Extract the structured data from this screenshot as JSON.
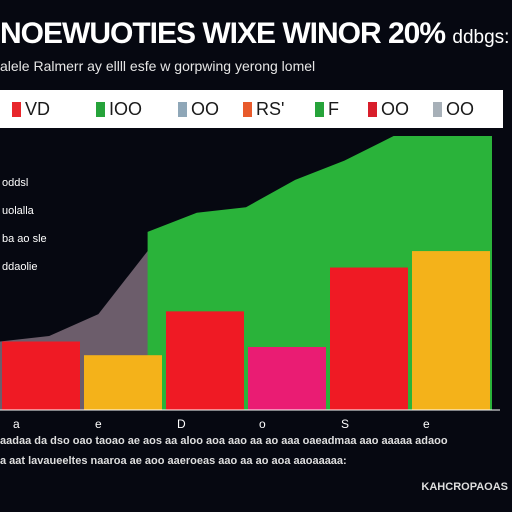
{
  "chart_data": {
    "type": "bar",
    "title": "NOEWUOTIES WIXE WINOR 20%",
    "title_suffix": "ddbgs:",
    "subtitle": "alele Ralmerr ay ellll esfe w gorpwing yerong lomel",
    "legend": [
      {
        "label": "VD",
        "color": "#e8262b"
      },
      {
        "label": "IOO",
        "color": "#26a33a"
      },
      {
        "label": "OO",
        "color": "#8fa7b8"
      },
      {
        "label": "RS'",
        "color": "#e85a2b"
      },
      {
        "label": "F",
        "color": "#26a33a"
      },
      {
        "label": "OO",
        "color": "#d81e2b"
      },
      {
        "label": "OO",
        "color": "#a7b0b8"
      }
    ],
    "y_tick_labels": [
      "oddsl",
      "uolalla",
      "ba ao sle",
      "ddaolie"
    ],
    "x_tick_labels": [
      "a",
      "e",
      "D",
      "o",
      "S",
      "e"
    ],
    "ylim": [
      0,
      100
    ],
    "bars": [
      {
        "value": 25,
        "color": "#ef1a24"
      },
      {
        "value": 20,
        "color": "#f4b21a"
      },
      {
        "value": 36,
        "color": "#ef1a24"
      },
      {
        "value": 23,
        "color": "#ea1c73"
      },
      {
        "value": 52,
        "color": "#ef1a24"
      },
      {
        "value": 58,
        "color": "#f4b21a"
      }
    ],
    "area_back": {
      "color": "#6c5d6b",
      "values": [
        25,
        27,
        35,
        58,
        57,
        53,
        60,
        60,
        62,
        62,
        64
      ]
    },
    "area_front": {
      "color": "#2ab33a",
      "values": [
        null,
        null,
        null,
        65,
        72,
        74,
        84,
        91,
        100,
        100,
        100
      ]
    },
    "grid": false,
    "legend_position": "top"
  },
  "footer_line_1": "aadaa da dso oao taoao ae aos aa aloo aoa aao aa ao aaa oaeadmaa aao aaaaa adaoo",
  "footer_line_2": "a aat lavaueeltes naaroa ae aoo aaeroeas aao aa ao aoa aaoaaaaa:",
  "credit": "KAHCROPAOAS"
}
